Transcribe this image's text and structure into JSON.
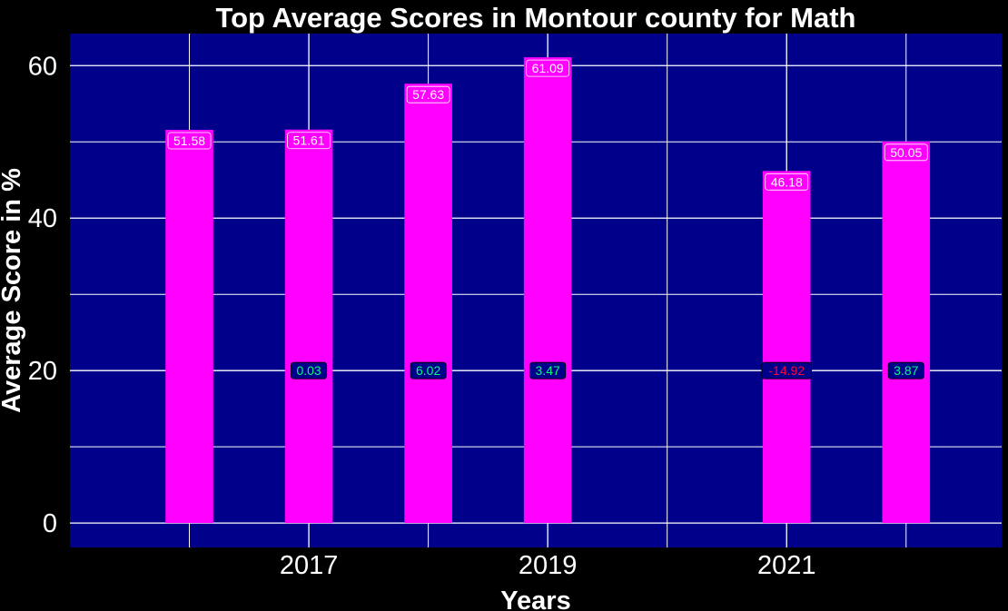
{
  "chart_data": {
    "type": "bar",
    "title": "Top Average Scores in Montour county for Math",
    "xlabel": "Years",
    "ylabel": "Average Score in %",
    "categories": [
      2016,
      2017,
      2018,
      2019,
      2021,
      2022
    ],
    "values": [
      51.58,
      51.61,
      57.63,
      61.09,
      46.18,
      50.05
    ],
    "value_labels": [
      "51.58",
      "51.61",
      "57.63",
      "61.09",
      "46.18",
      "50.05"
    ],
    "changes": [
      {
        "year": 2017,
        "text": "0.03",
        "value": 0.03
      },
      {
        "year": 2018,
        "text": "6.02",
        "value": 6.02
      },
      {
        "year": 2019,
        "text": "3.47",
        "value": 3.47
      },
      {
        "year": 2021,
        "text": "-14.92",
        "value": -14.92
      },
      {
        "year": 2022,
        "text": "3.87",
        "value": 3.87
      }
    ],
    "change_label_y": 20,
    "x_ticks": [
      2017,
      2019,
      2021
    ],
    "x_tick_labels": [
      "2017",
      "2019",
      "2021"
    ],
    "y_ticks": [
      0,
      20,
      40,
      60
    ],
    "y_tick_labels": [
      "0",
      "20",
      "40",
      "60"
    ],
    "xlim": [
      2015.0,
      2022.8
    ],
    "ylim": [
      -3.2,
      64.2
    ],
    "grid": true,
    "colors": {
      "background": "#000000",
      "panel": "#00008b",
      "bar": "#ff00ff",
      "grid": "#ffffff",
      "text": "#ffffff",
      "change_label_bg": "#00008b",
      "positive_change": "#00ff7f",
      "negative_change": "#ff0040"
    }
  }
}
